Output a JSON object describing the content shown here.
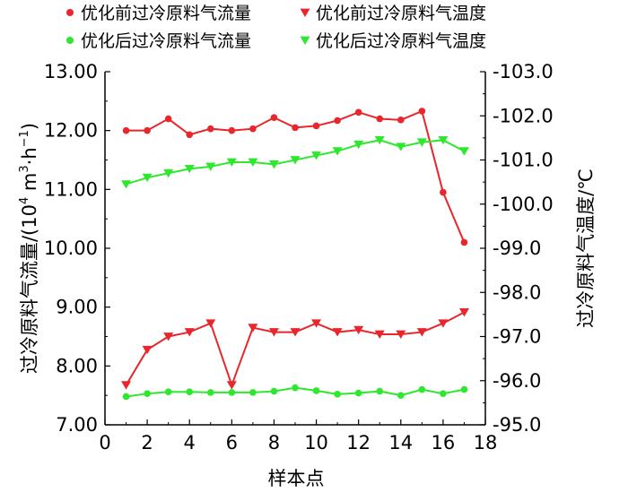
{
  "chart_data": {
    "type": "line",
    "xlabel": "样本点",
    "ylabel_left": "过冷原料气流量/(10⁴ m³·h⁻¹)",
    "ylabel_left_parts": {
      "main": "过冷原料气流量/(10",
      "exp1": "4",
      "mid": " m",
      "exp2": "3",
      "dot": "·h",
      "exp3": "−1",
      "end": ")"
    },
    "ylabel_right": "过冷原料气温度/℃",
    "xlim": [
      0,
      18
    ],
    "xticks": [
      "0",
      "2",
      "4",
      "6",
      "8",
      "10",
      "12",
      "14",
      "16",
      "18"
    ],
    "ylim_left": [
      7.0,
      13.0
    ],
    "yticks_left": [
      "7.00",
      "8.00",
      "9.00",
      "10.00",
      "11.00",
      "12.00",
      "13.00"
    ],
    "ylim_right": [
      -95.0,
      -103.0
    ],
    "yticks_right": [
      "-95.0",
      "-96.0",
      "-97.0",
      "-98.0",
      "-99.0",
      "-100.0",
      "-101.0",
      "-102.0",
      "-103.0"
    ],
    "x": [
      1,
      2,
      3,
      4,
      5,
      6,
      7,
      8,
      9,
      10,
      11,
      12,
      13,
      14,
      15,
      16,
      17
    ],
    "series": [
      {
        "name": "优化前过冷原料气流量",
        "axis": "left",
        "marker": "circle",
        "color": "#e8262b",
        "values": [
          12.0,
          12.0,
          12.2,
          11.93,
          12.03,
          12.0,
          12.03,
          12.22,
          12.05,
          12.08,
          12.17,
          12.31,
          12.2,
          12.18,
          12.33,
          10.95,
          10.1
        ]
      },
      {
        "name": "优化前过冷原料气温度",
        "axis": "right",
        "marker": "triangle-down",
        "color": "#e8262b",
        "values": [
          -95.9,
          -96.7,
          -97.0,
          -97.1,
          -97.3,
          -95.9,
          -97.2,
          -97.1,
          -97.1,
          -97.3,
          -97.1,
          -97.15,
          -97.05,
          -97.05,
          -97.1,
          -97.3,
          -97.55
        ]
      },
      {
        "name": "优化后过冷原料气流量",
        "axis": "left",
        "marker": "circle",
        "color": "#2ee82e",
        "values": [
          7.48,
          7.53,
          7.56,
          7.56,
          7.55,
          7.55,
          7.55,
          7.57,
          7.63,
          7.58,
          7.52,
          7.54,
          7.57,
          7.5,
          7.6,
          7.53,
          7.6
        ]
      },
      {
        "name": "优化后过冷原料气温度",
        "axis": "right",
        "marker": "triangle-down",
        "color": "#2ee82e",
        "values": [
          -100.45,
          -100.6,
          -100.7,
          -100.8,
          -100.85,
          -100.95,
          -100.95,
          -100.9,
          -101.0,
          -101.1,
          -101.2,
          -101.35,
          -101.45,
          -101.3,
          -101.4,
          -101.45,
          -101.2
        ]
      }
    ],
    "legend_position": "top",
    "grid": false
  }
}
